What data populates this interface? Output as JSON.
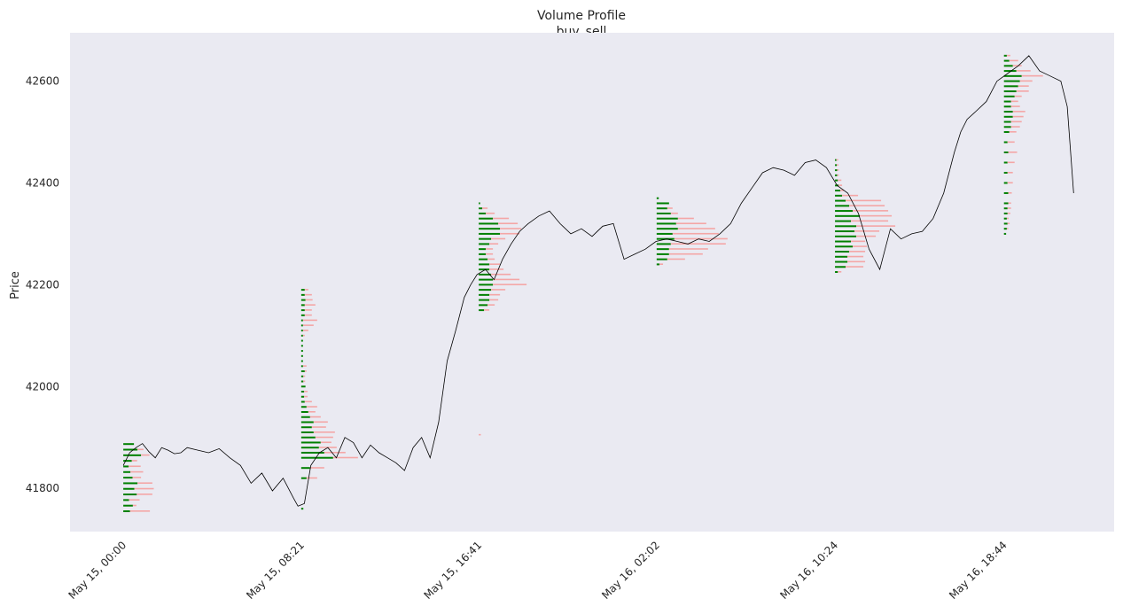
{
  "chart_data": {
    "type": "line",
    "title": "Volume Profile",
    "subtitle": "buy_sell",
    "xlabel": "",
    "ylabel": "Price",
    "x_tick_labels": [
      "May 15, 00:00",
      "May 15, 08:21",
      "May 15, 16:41",
      "May 16, 02:02",
      "May 16, 10:24",
      "May 16, 18:44"
    ],
    "y_ticks": [
      41800,
      42000,
      42200,
      42400,
      42600
    ],
    "ylim": [
      41715,
      42695
    ],
    "x_unit": "hours since May 15, 00:00",
    "xlim": [
      -2.5,
      46.5
    ],
    "grid": false,
    "background_color": "#eaeaf2",
    "price_color": "#000000",
    "buy_color": "#008000",
    "sell_color": "#f4a6a6",
    "price_series": {
      "name": "price",
      "x": [
        0,
        0.3,
        0.6,
        0.9,
        1.2,
        1.5,
        1.8,
        2.1,
        2.4,
        2.7,
        3.0,
        3.5,
        4.0,
        4.5,
        5.0,
        5.5,
        6.0,
        6.5,
        7.0,
        7.5,
        8.0,
        8.2,
        8.5,
        8.8,
        9.2,
        9.6,
        10.0,
        10.4,
        10.8,
        11.2,
        11.6,
        12.0,
        12.4,
        12.8,
        13.2,
        13.6,
        14.0,
        14.4,
        14.8,
        15.2,
        15.6,
        16.0,
        16.3,
        16.6,
        17.0,
        17.4,
        17.8,
        18.2,
        18.6,
        19.0,
        19.5,
        20.0,
        20.5,
        21.0,
        21.5,
        22.0,
        22.5,
        23.0,
        23.5,
        24.0,
        24.5,
        25.0,
        25.5,
        26.0,
        26.5,
        27.0,
        27.5,
        28.0,
        28.5,
        29.0,
        29.5,
        30.0,
        30.5,
        31.0,
        31.5,
        32.0,
        32.5,
        33.0,
        33.5,
        34.0,
        34.5,
        35.0,
        35.5,
        36.0,
        36.5,
        37.0,
        37.5,
        38.0,
        38.5,
        39.0,
        39.3,
        39.6,
        40.0,
        40.5,
        41.0,
        41.5,
        42.0,
        42.5,
        43.0,
        43.5,
        44.0,
        44.3,
        44.6
      ],
      "y": [
        41845,
        41870,
        41880,
        41888,
        41872,
        41860,
        41880,
        41875,
        41868,
        41870,
        41880,
        41875,
        41870,
        41878,
        41860,
        41845,
        41810,
        41830,
        41795,
        41820,
        41780,
        41765,
        41770,
        41845,
        41870,
        41880,
        41860,
        41900,
        41890,
        41860,
        41885,
        41870,
        41860,
        41850,
        41835,
        41880,
        41900,
        41860,
        41930,
        42050,
        42110,
        42175,
        42200,
        42220,
        42230,
        42210,
        42250,
        42280,
        42305,
        42320,
        42335,
        42345,
        42320,
        42300,
        42310,
        42295,
        42315,
        42320,
        42250,
        42260,
        42270,
        42285,
        42290,
        42285,
        42280,
        42290,
        42285,
        42300,
        42320,
        42360,
        42390,
        42420,
        42430,
        42425,
        42415,
        42440,
        42445,
        42430,
        42395,
        42380,
        42340,
        42270,
        42230,
        42310,
        42290,
        42300,
        42305,
        42330,
        42380,
        42460,
        42500,
        42525,
        42540,
        42560,
        42600,
        42615,
        42630,
        42650,
        42620,
        42610,
        42600,
        42550,
        42380
      ]
    },
    "profiles": [
      {
        "start_label": "May 15, 00:00",
        "x_start": 0,
        "x_end": 8.0,
        "levels": [
          41755,
          41766,
          41777,
          41788,
          41799,
          41810,
          41821,
          41832,
          41843,
          41854,
          41865,
          41876,
          41887
        ],
        "buy_volume": [
          0.95,
          1.35,
          0.8,
          1.9,
          1.55,
          2.0,
          1.3,
          1.0,
          0.75,
          1.2,
          2.5,
          2.0,
          1.5
        ],
        "sell_volume": [
          2.8,
          0.5,
          1.5,
          2.2,
          2.75,
          2.1,
          1.2,
          1.8,
          1.7,
          0.75,
          1.2,
          0.85,
          0
        ]
      },
      {
        "start_label": "May 15, 08:21",
        "x_start": 8.35,
        "x_end": 16.68,
        "levels": [
          41760,
          41820,
          41840,
          41860,
          41870,
          41880,
          41890,
          41900,
          41910,
          41920,
          41930,
          41940,
          41950,
          41960,
          41970,
          41980,
          41990,
          42000,
          42010,
          42020,
          42030,
          42040,
          42050,
          42060,
          42070,
          42080,
          42090,
          42100,
          42110,
          42120,
          42130,
          42140,
          42150,
          42160,
          42170,
          42180,
          42190
        ],
        "buy_volume": [
          0.3,
          0.75,
          1.25,
          4.5,
          3.25,
          2.5,
          2.75,
          2.0,
          1.75,
          1.5,
          1.75,
          1.25,
          1.0,
          0.75,
          0.5,
          0.4,
          0.4,
          0.6,
          0.3,
          0.3,
          0.5,
          0.25,
          0.25,
          0.25,
          0.25,
          0.25,
          0.25,
          0.25,
          0.25,
          0.25,
          0.25,
          0.5,
          0.5,
          0.5,
          0.6,
          0.5,
          0.5
        ],
        "sell_volume": [
          0,
          1.5,
          2.0,
          3.5,
          3.0,
          2.5,
          1.5,
          2.5,
          3.0,
          2.0,
          2.0,
          1.5,
          1.0,
          1.5,
          1.0,
          0.5,
          0.5,
          0,
          0.25,
          0.25,
          0.25,
          0.5,
          0,
          0,
          0,
          0,
          0,
          0.25,
          0.75,
          1.5,
          2.0,
          1.0,
          1.0,
          1.5,
          1.0,
          1.0,
          0.5
        ]
      },
      {
        "start_label": "May 15, 16:41",
        "x_start": 16.68,
        "x_end": 25.03,
        "levels": [
          41905,
          42150,
          42160,
          42170,
          42180,
          42190,
          42200,
          42210,
          42220,
          42230,
          42240,
          42250,
          42260,
          42270,
          42280,
          42290,
          42300,
          42310,
          42320,
          42330,
          42340,
          42350,
          42360
        ],
        "buy_volume": [
          0,
          0.75,
          1.25,
          1.5,
          1.5,
          1.75,
          2.0,
          2.0,
          1.75,
          1.5,
          1.5,
          1.25,
          1.0,
          1.0,
          1.5,
          1.75,
          3.0,
          3.0,
          2.75,
          2.0,
          1.0,
          0.5,
          0.2
        ],
        "sell_volume": [
          0.3,
          0.75,
          1.0,
          1.25,
          1.5,
          2.0,
          4.75,
          3.75,
          2.75,
          2.0,
          1.5,
          1.0,
          1.0,
          1.0,
          1.25,
          2.0,
          2.75,
          3.0,
          2.75,
          2.25,
          1.25,
          0.75,
          0
        ]
      },
      {
        "start_label": "May 16, 02:02",
        "x_start": 25.03,
        "x_end": 33.4,
        "levels": [
          42240,
          42250,
          42260,
          42270,
          42280,
          42290,
          42300,
          42310,
          42320,
          42330,
          42340,
          42350,
          42360,
          42370
        ],
        "buy_volume": [
          0.4,
          1.5,
          1.75,
          1.75,
          2.0,
          2.5,
          2.25,
          3.0,
          2.75,
          3.0,
          2.0,
          1.5,
          1.75,
          0.3
        ],
        "sell_volume": [
          0.5,
          2.5,
          4.75,
          5.5,
          7.75,
          7.5,
          6.5,
          5.25,
          4.25,
          2.25,
          1.0,
          0.75,
          0,
          0
        ]
      },
      {
        "start_label": "May 16, 10:24",
        "x_start": 33.4,
        "x_end": 41.33,
        "levels": [
          42225,
          42235,
          42245,
          42255,
          42265,
          42275,
          42285,
          42295,
          42305,
          42315,
          42325,
          42335,
          42345,
          42355,
          42365,
          42375,
          42385,
          42395,
          42405,
          42415,
          42425,
          42435,
          42445
        ],
        "buy_volume": [
          0.4,
          1.5,
          1.75,
          1.75,
          2.0,
          2.5,
          2.25,
          3.0,
          2.75,
          3.0,
          2.25,
          3.5,
          2.5,
          2.0,
          1.5,
          1.0,
          0.75,
          0.5,
          0.4,
          0.3,
          0.3,
          0.25,
          0.2
        ],
        "sell_volume": [
          0.5,
          2.5,
          2.5,
          2.25,
          2.25,
          2.0,
          2.0,
          2.75,
          3.5,
          5.5,
          5.25,
          4.5,
          5.0,
          5.0,
          5.0,
          2.25,
          0.5,
          0.5,
          0.5,
          0.25,
          0.25,
          0.25,
          0.25
        ]
      },
      {
        "start_label": "May 16, 18:44",
        "x_start": 41.33,
        "x_end": 45.0,
        "levels": [
          42300,
          42310,
          42320,
          42330,
          42340,
          42350,
          42360,
          42380,
          42400,
          42420,
          42440,
          42460,
          42480,
          42500,
          42510,
          42520,
          42530,
          42540,
          42550,
          42560,
          42570,
          42580,
          42590,
          42600,
          42610,
          42620,
          42630,
          42640,
          42650
        ],
        "buy_volume": [
          0.3,
          0.4,
          0.5,
          0.4,
          0.5,
          0.5,
          0.6,
          0.6,
          0.5,
          0.5,
          0.5,
          0.6,
          0.5,
          0.75,
          1.0,
          1.0,
          1.25,
          1.25,
          1.0,
          1.0,
          1.5,
          1.75,
          2.0,
          2.25,
          2.5,
          1.75,
          1.25,
          0.75,
          0.4
        ],
        "sell_volume": [
          0,
          0.2,
          0.3,
          0.25,
          0.4,
          0.5,
          0.4,
          0.5,
          0.75,
          0.75,
          1.0,
          1.25,
          1.0,
          1.0,
          1.25,
          1.5,
          1.5,
          1.75,
          1.25,
          1.0,
          1.0,
          1.75,
          1.5,
          1.75,
          3.0,
          2.0,
          1.25,
          1.25,
          0.5
        ]
      }
    ]
  }
}
